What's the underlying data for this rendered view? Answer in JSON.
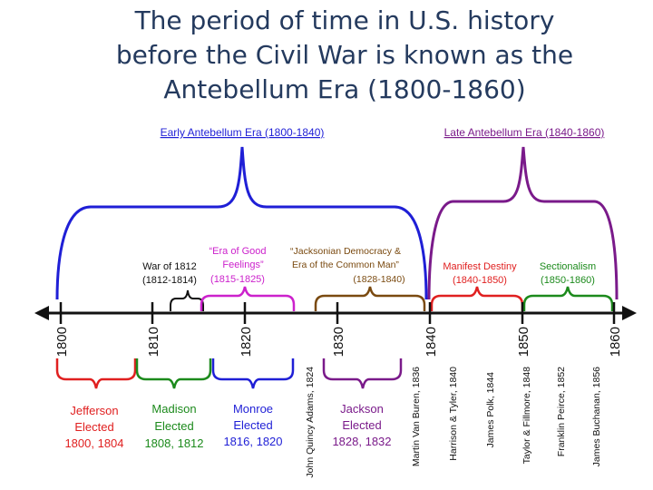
{
  "title": {
    "line1": "The period of time in U.S. history",
    "line2": "before the Civil War is known as the",
    "line3": "Antebellum Era (1800-1860)"
  },
  "eras": {
    "early": "Early Antebellum Era (1800-1840)",
    "late": "Late Antebellum Era (1840-1860)"
  },
  "periods": {
    "war1812": {
      "line1": "War of 1812",
      "line2": "(1812-1814)"
    },
    "good_feelings": {
      "line1": "“Era of Good",
      "line2": "Feelings”",
      "line3": "(1815-1825)"
    },
    "jacksonian": {
      "line1": "“Jacksonian Democracy &",
      "line2": "Era of the Common Man”",
      "line3": "(1828-1840)"
    },
    "manifest_destiny": {
      "line1": "Manifest Destiny",
      "line2": "(1840-1850)"
    },
    "sectionalism": {
      "line1": "Sectionalism",
      "line2": "(1850-1860)"
    }
  },
  "years": [
    "1800",
    "1810",
    "1820",
    "1830",
    "1840",
    "1850",
    "1860"
  ],
  "presidents": {
    "jefferson": {
      "name": "Jefferson",
      "line2": "Elected",
      "line3": "1800, 1804"
    },
    "madison": {
      "name": "Madison",
      "line2": "Elected",
      "line3": "1808, 1812"
    },
    "monroe": {
      "name": "Monroe",
      "line2": "Elected",
      "line3": "1816, 1820"
    },
    "jackson": {
      "name": "Jackson",
      "line2": "Elected",
      "line3": "1828, 1832"
    }
  },
  "rotated_presidents": [
    "John Quincy Adams, 1824",
    "Martin Van Buren, 1836",
    "Harrison & Tyler, 1840",
    "James Polk, 1844",
    "Taylor & Fillmore, 1848",
    "Franklin Peirce, 1852",
    "James Buchanan, 1856"
  ],
  "colors": {
    "title": "#243a5e",
    "blue": "#1f1fd6",
    "purple": "#7a1a8a",
    "magenta": "#cc22cc",
    "brown": "#7a4a10",
    "red": "#e02020",
    "green": "#1c8a1c",
    "black": "#111111"
  }
}
